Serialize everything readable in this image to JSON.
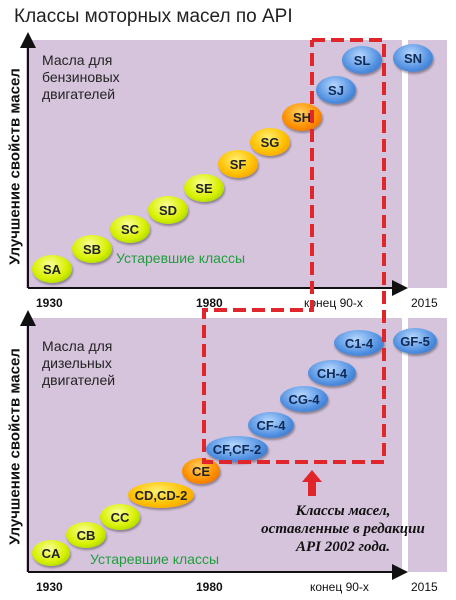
{
  "title": "Классы моторных масел по API",
  "y_axis_label": "Улучшение свойств масел",
  "petrol": {
    "title_line1": "Масла для",
    "title_line2": "бензиновых",
    "title_line3": "двигателей",
    "obsolete_label": "Устаревшие классы",
    "classes": [
      "SA",
      "SB",
      "SC",
      "SD",
      "SE",
      "SF",
      "SG",
      "SH",
      "SJ",
      "SL",
      "SN"
    ],
    "ticks": [
      "1930",
      "1980",
      "конец 90-х",
      "2015"
    ]
  },
  "diesel": {
    "title_line1": "Масла для",
    "title_line2": "дизельных",
    "title_line3": "двигателей",
    "obsolete_label": "Устаревшие классы",
    "classes": [
      "CA",
      "CB",
      "CC",
      "CD,CD-2",
      "CE",
      "CF,CF-2",
      "CF-4",
      "CG-4",
      "CH-4",
      "C1-4",
      "GF-5"
    ],
    "ticks": [
      "1930",
      "1980",
      "конец 90-х",
      "2015"
    ]
  },
  "note": {
    "line1": "Классы масел,",
    "line2": "оставленные в редакции",
    "line3": "API 2002 года."
  },
  "colors": {
    "panel": "#d6c4dc",
    "dashed_frame": "#e0262b",
    "arrow": "#e0262b",
    "obsolete_text": "#1f9e3c"
  }
}
